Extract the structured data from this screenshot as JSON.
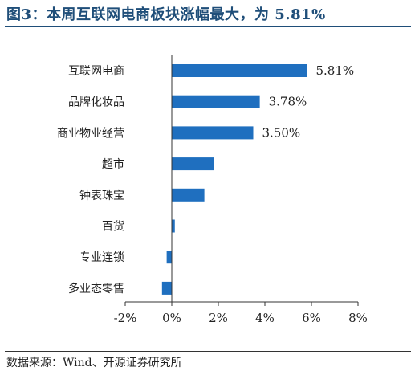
{
  "title": "图3：本周互联网电商板块涨幅最大，为 5.81%",
  "source": "数据来源：Wind、开源证券研究所",
  "colors": {
    "bar": "#1f6fbf",
    "title": "#1f4e79",
    "axis": "#333333"
  },
  "chart_data": {
    "type": "bar",
    "orientation": "horizontal",
    "categories": [
      "互联网电商",
      "品牌化妆品",
      "商业物业经营",
      "超市",
      "钟表珠宝",
      "百货",
      "专业连锁",
      "多业态零售"
    ],
    "values": [
      5.81,
      3.78,
      3.5,
      1.8,
      1.4,
      0.13,
      -0.22,
      -0.42
    ],
    "data_labels": [
      "5.81%",
      "3.78%",
      "3.50%",
      "",
      "",
      "",
      "",
      ""
    ],
    "xlim": [
      -2,
      8
    ],
    "xticks": [
      -2,
      0,
      2,
      4,
      6,
      8
    ],
    "xtick_labels": [
      "-2%",
      "0%",
      "2%",
      "4%",
      "6%",
      "8%"
    ],
    "grid": false,
    "legend": "none"
  }
}
